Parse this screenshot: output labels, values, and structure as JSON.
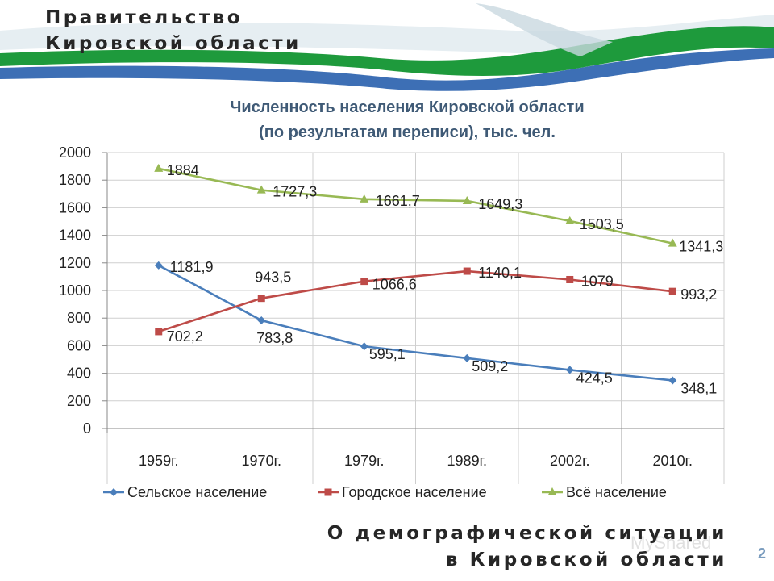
{
  "header": {
    "line1": "Правительство",
    "line2": "Кировской области"
  },
  "footer": {
    "line1": "О демографической ситуации",
    "line2": "в Кировской области",
    "slide_number": "2",
    "watermark": "MyShared"
  },
  "colors": {
    "ribbon_green": "#1e9a3c",
    "ribbon_blue": "#3d6fb5",
    "rural": "#4a7ebb",
    "urban": "#be4b48",
    "total": "#98b954"
  },
  "chart_data": {
    "type": "line",
    "title_line1": "Численность населения Кировской области",
    "title_line2": "(по результатам переписи), тыс. чел.",
    "categories": [
      "1959г.",
      "1970г.",
      "1979г.",
      "1989г.",
      "2002г.",
      "2010г."
    ],
    "ylim": [
      0,
      2000
    ],
    "yticks": [
      "0",
      "200",
      "400",
      "600",
      "800",
      "1000",
      "1200",
      "1400",
      "1600",
      "1800",
      "2000"
    ],
    "grid": true,
    "legend_position": "bottom",
    "series": [
      {
        "name": "Сельское население",
        "marker": "diamond",
        "values": [
          1181.9,
          783.8,
          595.1,
          509.2,
          424.5,
          348.1
        ],
        "labels": [
          "1181,9",
          "783,8",
          "595,1",
          "509,2",
          "424,5",
          "348,1"
        ]
      },
      {
        "name": "Городское население",
        "marker": "square",
        "values": [
          702.2,
          943.5,
          1066.6,
          1140.1,
          1079,
          993.2
        ],
        "labels": [
          "702,2",
          "943,5",
          "1066,6",
          "1140,1",
          "1079",
          "993,2"
        ]
      },
      {
        "name": "Всё население",
        "marker": "triangle",
        "values": [
          1884,
          1727.3,
          1661.7,
          1649.3,
          1503.5,
          1341.3
        ],
        "labels": [
          "1884",
          "1727,3",
          "1661,7",
          "1649,3",
          "1503,5",
          "1341,3"
        ]
      }
    ]
  }
}
